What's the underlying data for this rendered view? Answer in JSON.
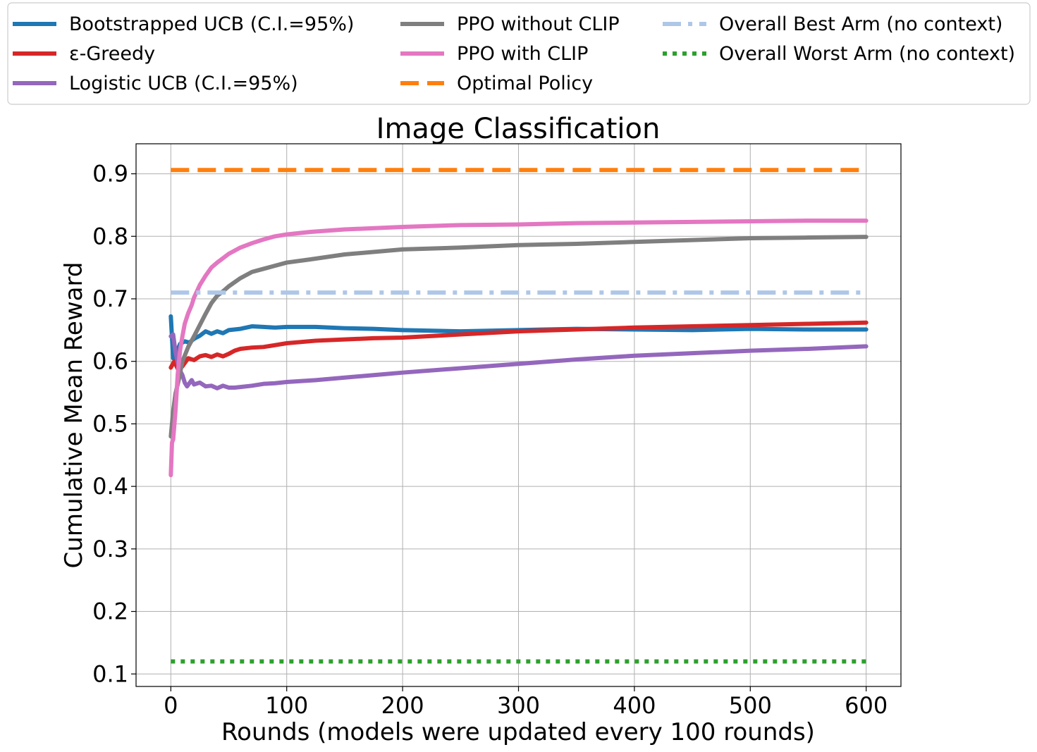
{
  "chart_data": {
    "type": "line",
    "title": "Image Classification",
    "xlabel": "Rounds (models were updated every 100 rounds)",
    "ylabel": "Cumulative Mean Reward",
    "xlim": [
      -30,
      630
    ],
    "ylim": [
      0.08,
      0.948
    ],
    "xticks": [
      0,
      100,
      200,
      300,
      400,
      500,
      600
    ],
    "yticks": [
      0.1,
      0.2,
      0.3,
      0.4,
      0.5,
      0.6,
      0.7,
      0.8,
      0.9
    ],
    "xtick_labels": [
      "0",
      "100",
      "200",
      "300",
      "400",
      "500",
      "600"
    ],
    "ytick_labels": [
      "0.1",
      "0.2",
      "0.3",
      "0.4",
      "0.5",
      "0.6",
      "0.7",
      "0.8",
      "0.9"
    ],
    "grid": true,
    "legend_location": "top, above plot, 3 columns",
    "series": [
      {
        "name": "Bootstrapped UCB (C.I.=95%)",
        "color": "#1f77b4",
        "dash": "solid",
        "x": [
          0,
          2,
          5,
          8,
          12,
          16,
          20,
          25,
          30,
          35,
          40,
          45,
          50,
          55,
          60,
          70,
          80,
          90,
          100,
          125,
          150,
          175,
          200,
          250,
          300,
          350,
          400,
          450,
          500,
          550,
          600
        ],
        "y": [
          0.672,
          0.605,
          0.615,
          0.628,
          0.632,
          0.63,
          0.636,
          0.641,
          0.648,
          0.644,
          0.648,
          0.645,
          0.65,
          0.651,
          0.652,
          0.656,
          0.655,
          0.654,
          0.655,
          0.655,
          0.653,
          0.652,
          0.65,
          0.648,
          0.65,
          0.652,
          0.651,
          0.65,
          0.652,
          0.651,
          0.651
        ]
      },
      {
        "name": "ε-Greedy",
        "color": "#d62728",
        "dash": "solid",
        "x": [
          0,
          3,
          6,
          10,
          15,
          20,
          25,
          30,
          35,
          40,
          45,
          50,
          55,
          60,
          70,
          80,
          90,
          100,
          125,
          150,
          175,
          200,
          250,
          300,
          350,
          400,
          450,
          500,
          550,
          600
        ],
        "y": [
          0.59,
          0.6,
          0.588,
          0.592,
          0.605,
          0.602,
          0.608,
          0.61,
          0.607,
          0.611,
          0.608,
          0.612,
          0.617,
          0.62,
          0.622,
          0.623,
          0.626,
          0.629,
          0.633,
          0.635,
          0.637,
          0.638,
          0.643,
          0.648,
          0.651,
          0.654,
          0.656,
          0.658,
          0.66,
          0.662
        ]
      },
      {
        "name": "Logistic UCB (C.I.=95%)",
        "color": "#9467bd",
        "dash": "solid",
        "x": [
          0,
          2,
          4,
          6,
          8,
          10,
          12,
          14,
          16,
          18,
          20,
          25,
          30,
          35,
          40,
          45,
          50,
          55,
          60,
          70,
          80,
          90,
          100,
          125,
          150,
          175,
          200,
          250,
          300,
          350,
          400,
          450,
          500,
          550,
          600
        ],
        "y": [
          0.64,
          0.643,
          0.615,
          0.598,
          0.585,
          0.578,
          0.566,
          0.56,
          0.565,
          0.57,
          0.563,
          0.566,
          0.56,
          0.561,
          0.557,
          0.561,
          0.558,
          0.558,
          0.559,
          0.561,
          0.564,
          0.565,
          0.567,
          0.57,
          0.574,
          0.578,
          0.582,
          0.589,
          0.596,
          0.603,
          0.609,
          0.613,
          0.617,
          0.62,
          0.624
        ]
      },
      {
        "name": "PPO without CLIP",
        "color": "#7f7f7f",
        "dash": "solid",
        "x": [
          0,
          2,
          4,
          7,
          10,
          15,
          20,
          25,
          30,
          35,
          40,
          45,
          50,
          60,
          70,
          80,
          90,
          100,
          120,
          150,
          200,
          250,
          300,
          350,
          400,
          450,
          500,
          550,
          600
        ],
        "y": [
          0.48,
          0.52,
          0.548,
          0.572,
          0.6,
          0.623,
          0.64,
          0.658,
          0.676,
          0.693,
          0.705,
          0.712,
          0.72,
          0.733,
          0.743,
          0.748,
          0.753,
          0.758,
          0.763,
          0.771,
          0.779,
          0.782,
          0.786,
          0.788,
          0.791,
          0.794,
          0.797,
          0.798,
          0.799
        ]
      },
      {
        "name": "PPO with CLIP",
        "color": "#e377c2",
        "dash": "solid",
        "x": [
          0,
          1,
          2,
          4,
          6,
          8,
          10,
          12,
          15,
          18,
          20,
          25,
          30,
          35,
          40,
          45,
          50,
          60,
          70,
          80,
          90,
          100,
          120,
          150,
          200,
          250,
          300,
          350,
          400,
          450,
          500,
          550,
          600
        ],
        "y": [
          0.418,
          0.47,
          0.475,
          0.52,
          0.58,
          0.618,
          0.64,
          0.66,
          0.677,
          0.69,
          0.702,
          0.722,
          0.737,
          0.75,
          0.758,
          0.765,
          0.772,
          0.782,
          0.789,
          0.795,
          0.8,
          0.803,
          0.807,
          0.811,
          0.815,
          0.818,
          0.819,
          0.821,
          0.822,
          0.823,
          0.824,
          0.825,
          0.825
        ]
      },
      {
        "name": "Optimal Policy",
        "color": "#ff7f0e",
        "dash": "dashed",
        "x": [
          0,
          600
        ],
        "y": [
          0.906,
          0.906
        ]
      },
      {
        "name": "Overall Best Arm (no context)",
        "color": "#aec7e8",
        "dash": "dashdot",
        "x": [
          0,
          600
        ],
        "y": [
          0.71,
          0.71
        ]
      },
      {
        "name": "Overall Worst Arm (no context)",
        "color": "#2ca02c",
        "dash": "dotted",
        "x": [
          0,
          600
        ],
        "y": [
          0.12,
          0.12
        ]
      }
    ]
  }
}
